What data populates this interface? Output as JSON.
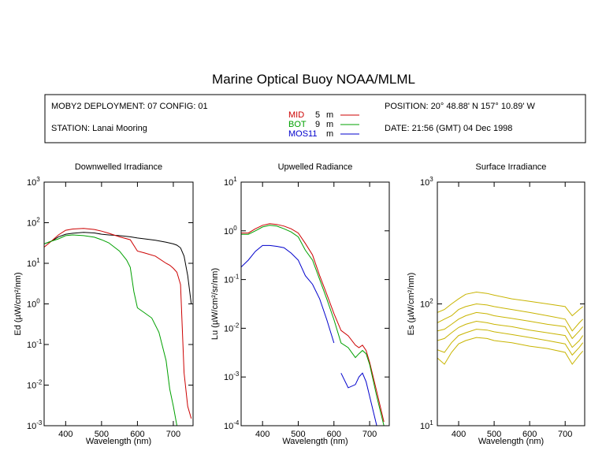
{
  "title": "Marine Optical Buoy NOAA/MLML",
  "info": {
    "deployment": "MOBY2 DEPLOYMENT: 07 CONFIG: 01",
    "station": "STATION: Lanai Mooring",
    "position": "POSITION: 20° 48.88' N   157° 10.89' W",
    "date": "DATE: 21:56 (GMT) 04 Dec 1998",
    "depths": [
      {
        "name": "MID",
        "value": "5",
        "unit": "m",
        "color": "#cc0000"
      },
      {
        "name": "BOT",
        "value": "9",
        "unit": "m",
        "color": "#00a000"
      },
      {
        "name": "MOS11",
        "value": "",
        "unit": "m",
        "color": "#0000cc"
      }
    ]
  },
  "chart_data": [
    {
      "type": "line",
      "title": "Downwelled Irradiance",
      "xlabel": "Wavelength (nm)",
      "ylabel": "Ed  (µW/cm²/nm)",
      "scale": "log",
      "xlim": [
        340,
        755
      ],
      "ylim_exp": [
        -3,
        3
      ],
      "xticks": [
        400,
        500,
        600,
        700
      ],
      "yticks": [
        {
          "base": "10",
          "exp": "3"
        },
        {
          "base": "10",
          "exp": "2"
        },
        {
          "base": "10",
          "exp": "1"
        },
        {
          "base": "10",
          "exp": "0"
        },
        {
          "base": "10",
          "exp": "-1"
        },
        {
          "base": "10",
          "exp": "-2"
        },
        {
          "base": "10",
          "exp": "-3"
        }
      ],
      "series": [
        {
          "color": "#000000",
          "x": [
            340,
            360,
            380,
            400,
            420,
            450,
            480,
            500,
            520,
            550,
            580,
            600,
            620,
            650,
            680,
            700,
            710,
            720,
            730,
            740,
            750
          ],
          "y": [
            30,
            35,
            45,
            52,
            55,
            58,
            56,
            52,
            50,
            48,
            45,
            42,
            40,
            37,
            33,
            30,
            28,
            24,
            15,
            5,
            1
          ]
        },
        {
          "color": "#cc0000",
          "x": [
            340,
            360,
            380,
            400,
            420,
            450,
            480,
            500,
            520,
            550,
            580,
            600,
            620,
            650,
            680,
            690,
            700,
            710,
            720,
            730,
            740,
            750
          ],
          "y": [
            25,
            35,
            50,
            65,
            70,
            72,
            68,
            62,
            55,
            45,
            38,
            20,
            18,
            15,
            10,
            9,
            7.5,
            6,
            3,
            0.02,
            0.003,
            0.0015
          ]
        },
        {
          "color": "#00a000",
          "x": [
            340,
            360,
            380,
            400,
            420,
            450,
            480,
            500,
            520,
            550,
            570,
            580,
            590,
            600,
            620,
            640,
            660,
            680,
            690,
            700,
            710,
            720,
            730,
            740,
            750
          ],
          "y": [
            30,
            35,
            40,
            48,
            50,
            48,
            44,
            38,
            32,
            20,
            12,
            8,
            2,
            0.8,
            0.6,
            0.45,
            0.2,
            0.04,
            0.008,
            0.003,
            0.001,
            0.001,
            0.001,
            0.001,
            0.001
          ]
        }
      ]
    },
    {
      "type": "line",
      "title": "Upwelled Radiance",
      "xlabel": "Wavelength (nm)",
      "ylabel": "Lu  (µW/cm²/sr/nm)",
      "scale": "log",
      "xlim": [
        340,
        755
      ],
      "ylim_exp": [
        -4,
        1
      ],
      "xticks": [
        400,
        500,
        600,
        700
      ],
      "yticks": [
        {
          "base": "10",
          "exp": "1"
        },
        {
          "base": "10",
          "exp": "0"
        },
        {
          "base": "10",
          "exp": "-1"
        },
        {
          "base": "10",
          "exp": "-2"
        },
        {
          "base": "10",
          "exp": "-3"
        },
        {
          "base": "10",
          "exp": "-4"
        }
      ],
      "series": [
        {
          "color": "#cc0000",
          "x": [
            340,
            360,
            380,
            400,
            420,
            440,
            460,
            480,
            500,
            520,
            540,
            560,
            580,
            600,
            620,
            640,
            660,
            670,
            680,
            690,
            700,
            720,
            740
          ],
          "y": [
            0.9,
            0.9,
            1.1,
            1.3,
            1.4,
            1.35,
            1.25,
            1.1,
            0.9,
            0.55,
            0.32,
            0.12,
            0.05,
            0.02,
            0.009,
            0.007,
            0.0045,
            0.004,
            0.0045,
            0.0035,
            0.002,
            0.0005,
            0.00012
          ]
        },
        {
          "color": "#00a000",
          "x": [
            340,
            360,
            380,
            400,
            420,
            440,
            460,
            480,
            500,
            520,
            540,
            560,
            580,
            600,
            620,
            640,
            660,
            670,
            680,
            690,
            700,
            720,
            740
          ],
          "y": [
            0.85,
            0.85,
            1.0,
            1.2,
            1.3,
            1.25,
            1.1,
            0.95,
            0.75,
            0.4,
            0.25,
            0.1,
            0.04,
            0.015,
            0.005,
            0.004,
            0.0025,
            0.003,
            0.0035,
            0.003,
            0.0018,
            0.0004,
            0.0001
          ]
        },
        {
          "color": "#0000cc",
          "x": [
            340,
            360,
            380,
            400,
            420,
            440,
            460,
            480,
            500,
            520,
            540,
            560,
            580,
            600
          ],
          "y": [
            0.18,
            0.25,
            0.38,
            0.5,
            0.5,
            0.48,
            0.45,
            0.35,
            0.25,
            0.12,
            0.08,
            0.04,
            0.015,
            0.005
          ]
        },
        {
          "color": "#0000cc",
          "x": [
            620,
            640,
            660,
            670,
            680,
            690,
            700,
            720,
            740
          ],
          "y": [
            0.0012,
            0.0006,
            0.0007,
            0.001,
            0.0012,
            0.0008,
            0.0004,
            0.0001,
            2e-05
          ]
        }
      ]
    },
    {
      "type": "line",
      "title": "Surface Irradiance",
      "xlabel": "Wavelength (nm)",
      "ylabel": "Es  (µW/cm²/nm)",
      "scale": "log",
      "xlim": [
        340,
        755
      ],
      "ylim_exp": [
        1,
        3
      ],
      "xticks": [
        400,
        500,
        600,
        700
      ],
      "yticks": [
        {
          "base": "10",
          "exp": "3"
        },
        {
          "base": "10",
          "exp": "2"
        },
        {
          "base": "10",
          "exp": "1"
        }
      ],
      "series": [
        {
          "color": "#c8b400",
          "x": [
            340,
            360,
            380,
            400,
            420,
            450,
            480,
            500,
            550,
            600,
            650,
            700,
            720,
            740,
            750
          ],
          "y": [
            85,
            90,
            100,
            110,
            120,
            125,
            122,
            118,
            110,
            105,
            100,
            95,
            80,
            90,
            95
          ]
        },
        {
          "color": "#c8b400",
          "x": [
            340,
            360,
            380,
            400,
            420,
            450,
            480,
            500,
            550,
            600,
            650,
            700,
            720,
            740,
            750
          ],
          "y": [
            70,
            75,
            80,
            90,
            95,
            100,
            98,
            95,
            90,
            85,
            80,
            75,
            60,
            70,
            75
          ]
        },
        {
          "color": "#c8b400",
          "x": [
            340,
            360,
            380,
            400,
            420,
            450,
            480,
            500,
            550,
            600,
            650,
            700,
            720,
            740,
            750
          ],
          "y": [
            60,
            62,
            68,
            75,
            80,
            85,
            83,
            80,
            76,
            72,
            68,
            65,
            52,
            60,
            65
          ]
        },
        {
          "color": "#c8b400",
          "x": [
            340,
            360,
            380,
            400,
            420,
            450,
            480,
            500,
            550,
            600,
            650,
            700,
            720,
            740,
            750
          ],
          "y": [
            50,
            52,
            58,
            64,
            68,
            72,
            70,
            68,
            65,
            61,
            58,
            55,
            44,
            50,
            55
          ]
        },
        {
          "color": "#c8b400",
          "x": [
            340,
            360,
            380,
            400,
            420,
            450,
            480,
            500,
            550,
            600,
            650,
            700,
            720,
            740,
            750
          ],
          "y": [
            42,
            40,
            48,
            55,
            58,
            62,
            61,
            59,
            56,
            53,
            50,
            47,
            38,
            44,
            48
          ]
        },
        {
          "color": "#c8b400",
          "x": [
            340,
            360,
            380,
            400,
            420,
            450,
            480,
            500,
            550,
            600,
            650,
            700,
            720,
            740,
            750
          ],
          "y": [
            36,
            32,
            40,
            47,
            50,
            53,
            52,
            50,
            48,
            45,
            43,
            40,
            32,
            38,
            41
          ]
        }
      ]
    }
  ]
}
